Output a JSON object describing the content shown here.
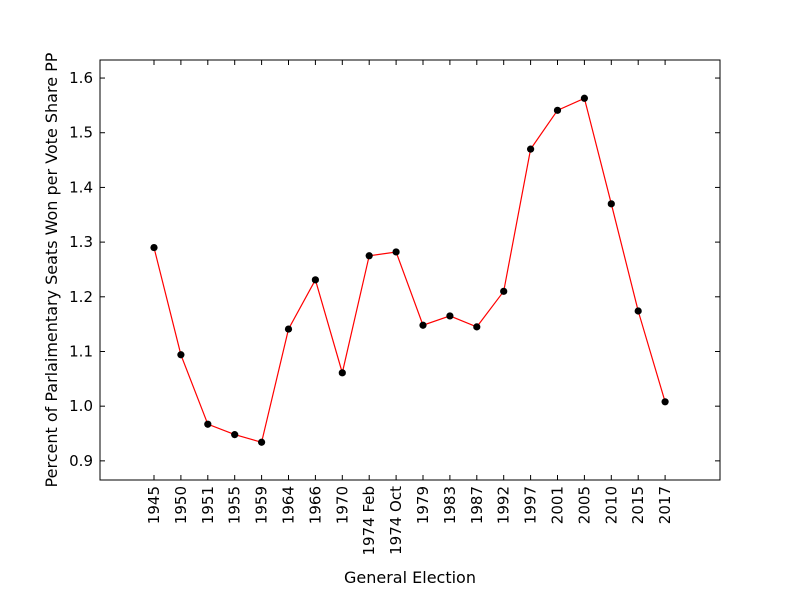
{
  "chart_data": {
    "type": "line",
    "title": "",
    "xlabel": "General Election",
    "ylabel": "Percent of Parlaimentary Seats Won per Vote Share PP",
    "categories": [
      "1945",
      "1950",
      "1951",
      "1955",
      "1959",
      "1964",
      "1966",
      "1970",
      "1974 Feb",
      "1974 Oct",
      "1979",
      "1983",
      "1987",
      "1992",
      "1997",
      "2001",
      "2005",
      "2010",
      "2015",
      "2017"
    ],
    "series": [
      {
        "values": [
          1.29,
          1.094,
          0.967,
          0.948,
          0.934,
          1.141,
          1.231,
          1.061,
          1.275,
          1.282,
          1.148,
          1.165,
          1.145,
          1.21,
          1.47,
          1.541,
          1.563,
          1.37,
          1.174,
          1.008
        ],
        "line_color": "#ff0000",
        "marker_color": "#000000"
      }
    ],
    "ylim": [
      0.865,
      1.633
    ],
    "yticks": [
      "0.9",
      "1.0",
      "1.1",
      "1.2",
      "1.3",
      "1.4",
      "1.5",
      "1.6"
    ],
    "grid": false,
    "legend": "none"
  }
}
